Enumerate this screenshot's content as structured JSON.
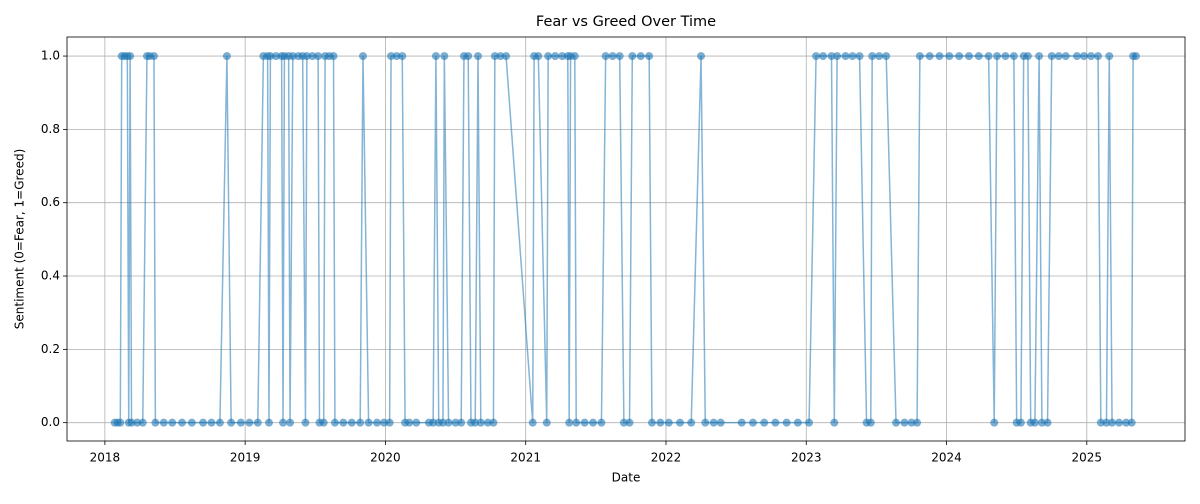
{
  "chart_data": {
    "type": "line",
    "title": "Fear vs Greed Over Time",
    "x_label": "Date",
    "y_label": "Sentiment (0=Fear, 1=Greed)",
    "color": "#1f77b4",
    "markers": true,
    "grid": true,
    "xlim": [
      2017.73,
      2025.7
    ],
    "xticks": [
      2018,
      2019,
      2020,
      2021,
      2022,
      2023,
      2024,
      2025
    ],
    "ylim": [
      -0.05,
      1.052
    ],
    "yticks": [
      {
        "value": 0,
        "label": "0.0"
      },
      {
        "value": 0.2,
        "label": "0.2"
      },
      {
        "value": 0.4,
        "label": "0.4"
      },
      {
        "value": 0.6,
        "label": "0.6"
      },
      {
        "value": 0.8,
        "label": "0.8"
      },
      {
        "value": 1,
        "label": "1.0"
      }
    ],
    "x": [
      2018.07,
      2018.09,
      2018.11,
      2018.12,
      2018.14,
      2018.16,
      2018.17,
      2018.18,
      2018.19,
      2018.23,
      2018.27,
      2018.3,
      2018.32,
      2018.35,
      2018.36,
      2018.42,
      2018.48,
      2018.55,
      2018.62,
      2018.7,
      2018.76,
      2018.82,
      2018.87,
      2018.9,
      2018.97,
      2019.03,
      2019.09,
      2019.13,
      2019.16,
      2019.17,
      2019.18,
      2019.22,
      2019.26,
      2019.27,
      2019.28,
      2019.31,
      2019.32,
      2019.34,
      2019.38,
      2019.41,
      2019.43,
      2019.44,
      2019.48,
      2019.52,
      2019.53,
      2019.56,
      2019.57,
      2019.6,
      2019.63,
      2019.64,
      2019.7,
      2019.76,
      2019.82,
      2019.84,
      2019.88,
      2019.94,
      2019.99,
      2020.03,
      2020.04,
      2020.08,
      2020.12,
      2020.14,
      2020.17,
      2020.22,
      2020.31,
      2020.34,
      2020.36,
      2020.38,
      2020.41,
      2020.42,
      2020.45,
      2020.5,
      2020.54,
      2020.56,
      2020.59,
      2020.61,
      2020.64,
      2020.66,
      2020.68,
      2020.73,
      2020.77,
      2020.78,
      2020.82,
      2020.86,
      2021.05,
      2021.06,
      2021.09,
      2021.15,
      2021.16,
      2021.21,
      2021.26,
      2021.3,
      2021.31,
      2021.32,
      2021.35,
      2021.36,
      2021.42,
      2021.48,
      2021.54,
      2021.57,
      2021.62,
      2021.67,
      2021.7,
      2021.74,
      2021.76,
      2021.82,
      2021.88,
      2021.9,
      2021.96,
      2022.02,
      2022.1,
      2022.18,
      2022.25,
      2022.28,
      2022.34,
      2022.39,
      2022.54,
      2022.62,
      2022.7,
      2022.78,
      2022.86,
      2022.94,
      2023.02,
      2023.07,
      2023.12,
      2023.18,
      2023.2,
      2023.22,
      2023.28,
      2023.33,
      2023.38,
      2023.43,
      2023.46,
      2023.47,
      2023.52,
      2023.57,
      2023.64,
      2023.7,
      2023.75,
      2023.79,
      2023.81,
      2023.88,
      2023.95,
      2024.02,
      2024.09,
      2024.16,
      2024.23,
      2024.3,
      2024.34,
      2024.36,
      2024.42,
      2024.48,
      2024.5,
      2024.53,
      2024.55,
      2024.58,
      2024.6,
      2024.63,
      2024.66,
      2024.68,
      2024.72,
      2024.75,
      2024.8,
      2024.85,
      2024.93,
      2024.98,
      2025.03,
      2025.08,
      2025.1,
      2025.14,
      2025.16,
      2025.18,
      2025.23,
      2025.28,
      2025.32,
      2025.33,
      2025.35
    ],
    "values": [
      0,
      0,
      0,
      1,
      1,
      1,
      0,
      1,
      0,
      0,
      0,
      1,
      1,
      1,
      0,
      0,
      0,
      0,
      0,
      0,
      0,
      0,
      1,
      0,
      0,
      0,
      0,
      1,
      1,
      0,
      1,
      1,
      1,
      0,
      1,
      1,
      0,
      1,
      1,
      1,
      0,
      1,
      1,
      1,
      0,
      0,
      1,
      1,
      1,
      0,
      0,
      0,
      0,
      1,
      0,
      0,
      0,
      0,
      1,
      1,
      1,
      0,
      0,
      0,
      0,
      0,
      1,
      0,
      0,
      1,
      0,
      0,
      0,
      1,
      1,
      0,
      0,
      1,
      0,
      0,
      0,
      1,
      1,
      1,
      0,
      1,
      1,
      0,
      1,
      1,
      1,
      1,
      0,
      1,
      1,
      0,
      0,
      0,
      0,
      1,
      1,
      1,
      0,
      0,
      1,
      1,
      1,
      0,
      0,
      0,
      0,
      0,
      1,
      0,
      0,
      0,
      0,
      0,
      0,
      0,
      0,
      0,
      0,
      1,
      1,
      1,
      0,
      1,
      1,
      1,
      1,
      0,
      0,
      1,
      1,
      1,
      0,
      0,
      0,
      0,
      1,
      1,
      1,
      1,
      1,
      1,
      1,
      1,
      0,
      1,
      1,
      1,
      0,
      0,
      1,
      1,
      0,
      0,
      1,
      0,
      0,
      1,
      1,
      1,
      1,
      1,
      1,
      1,
      0,
      0,
      1,
      0,
      0,
      0,
      0,
      1,
      1
    ]
  }
}
